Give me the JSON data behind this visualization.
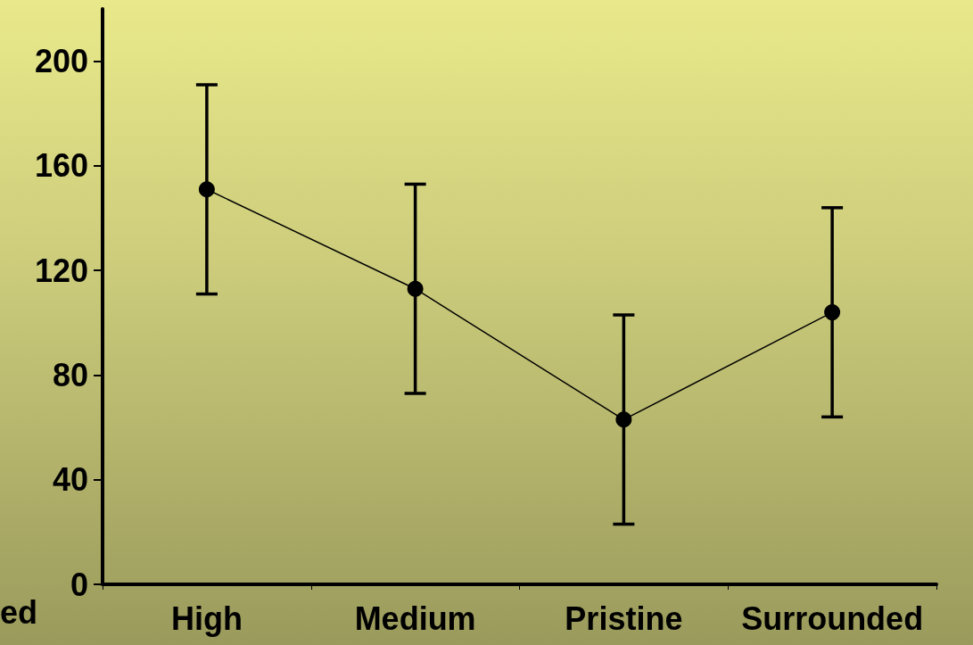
{
  "chart_data": {
    "type": "line",
    "categories": [
      "High",
      "Medium",
      "Pristine",
      "Surrounded"
    ],
    "series": [
      {
        "color": "#000000",
        "values": [
          151,
          113,
          63,
          104
        ],
        "errors": [
          40,
          40,
          40,
          40
        ]
      }
    ],
    "ylim": [
      0,
      220
    ],
    "yticks": [
      0,
      40,
      80,
      120,
      160,
      200
    ],
    "grid": false,
    "marker": "circle",
    "line_style": "solid",
    "annotations": [
      "ed"
    ]
  }
}
